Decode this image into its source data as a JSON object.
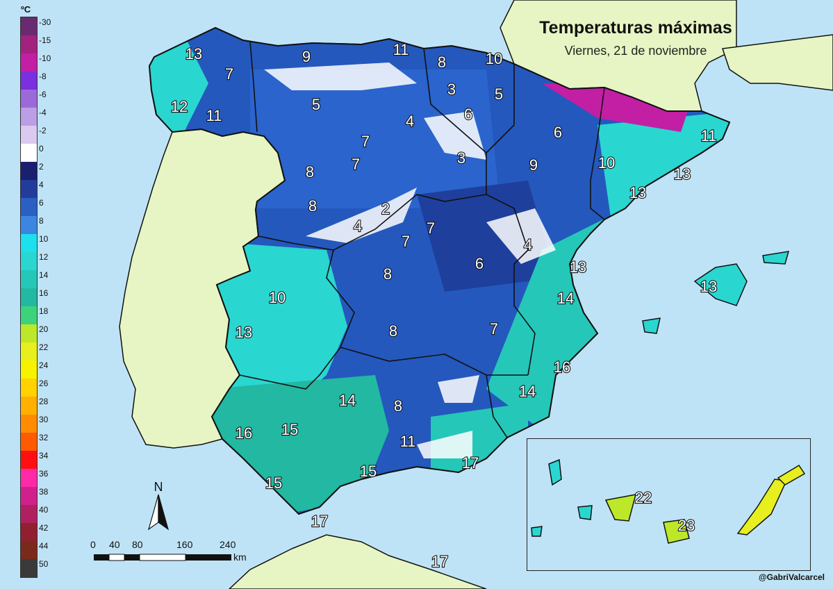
{
  "title": "Temperaturas máximas",
  "subtitle": "Viernes, 21 de noviembre",
  "credit": "@GabriValcarcel",
  "legend": {
    "unit": "ºC",
    "entries": [
      {
        "label": "-30",
        "color": "#6a2a70"
      },
      {
        "label": "-15",
        "color": "#a3217f"
      },
      {
        "label": "-10",
        "color": "#c21fa5"
      },
      {
        "label": "-8",
        "color": "#7a2fe0"
      },
      {
        "label": "-6",
        "color": "#9b6ad8"
      },
      {
        "label": "-4",
        "color": "#bb9ee6"
      },
      {
        "label": "-2",
        "color": "#dbc9ef"
      },
      {
        "label": "0",
        "color": "#ffffff"
      },
      {
        "label": "2",
        "color": "#1a1f6e"
      },
      {
        "label": "4",
        "color": "#213c9a"
      },
      {
        "label": "6",
        "color": "#2a5fc4"
      },
      {
        "label": "8",
        "color": "#3a86e0"
      },
      {
        "label": "10",
        "color": "#1ce0ee"
      },
      {
        "label": "12",
        "color": "#2ad6d0"
      },
      {
        "label": "14",
        "color": "#25c7b9"
      },
      {
        "label": "16",
        "color": "#22b8a2"
      },
      {
        "label": "18",
        "color": "#3cd37c"
      },
      {
        "label": "20",
        "color": "#bde82a"
      },
      {
        "label": "22",
        "color": "#e7ef1e"
      },
      {
        "label": "24",
        "color": "#f7f200"
      },
      {
        "label": "26",
        "color": "#ffd200"
      },
      {
        "label": "28",
        "color": "#ffb000"
      },
      {
        "label": "30",
        "color": "#ff8c00"
      },
      {
        "label": "32",
        "color": "#ff5a00"
      },
      {
        "label": "34",
        "color": "#ff1010"
      },
      {
        "label": "36",
        "color": "#ff2aa8"
      },
      {
        "label": "38",
        "color": "#d0208c"
      },
      {
        "label": "40",
        "color": "#b02060"
      },
      {
        "label": "42",
        "color": "#902030"
      },
      {
        "label": "44",
        "color": "#7a2a1a"
      },
      {
        "label": "50",
        "color": "#3a3a3a"
      }
    ]
  },
  "temperatures": [
    "13",
    "9",
    "11",
    "8",
    "10",
    "7",
    "3",
    "5",
    "12",
    "5",
    "11",
    "4",
    "6",
    "6",
    "7",
    "7",
    "3",
    "11",
    "9",
    "10",
    "8",
    "13",
    "13",
    "8",
    "2",
    "4",
    "7",
    "7",
    "4",
    "6",
    "8",
    "13",
    "13",
    "10",
    "14",
    "13",
    "8",
    "7",
    "16",
    "14",
    "8",
    "14",
    "15",
    "16",
    "11",
    "17",
    "15",
    "15",
    "17",
    "17",
    "22",
    "23"
  ],
  "compass": {
    "label": "N"
  },
  "scale": {
    "ticks": [
      "0",
      "40",
      "80",
      "160",
      "240"
    ],
    "unit": "km"
  },
  "colors": {
    "sea": "#bfe3f6",
    "land_other": "#e6f5c3",
    "border": "#111111"
  }
}
